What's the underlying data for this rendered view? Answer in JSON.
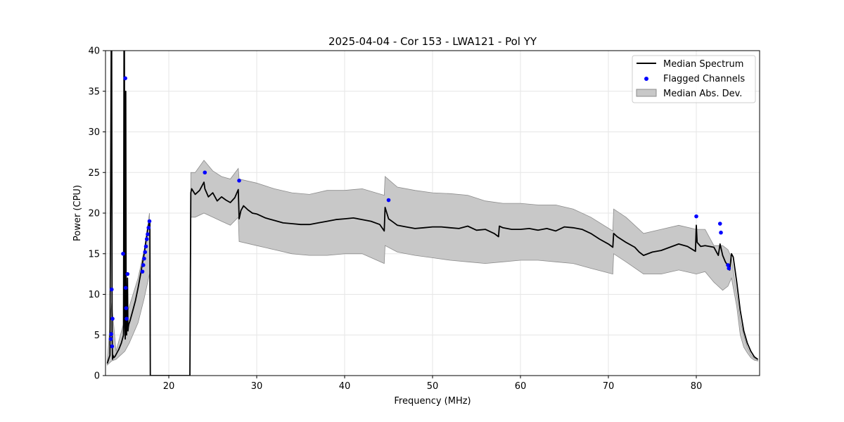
{
  "chart_data": {
    "type": "line",
    "title": "2025-04-04 - Cor 153 - LWA121 - Pol YY",
    "xlabel": "Frequency (MHz)",
    "ylabel": "Power (CPU)",
    "xlim": [
      12.8,
      87.2
    ],
    "ylim": [
      0,
      40
    ],
    "xticks": [
      20,
      30,
      40,
      50,
      60,
      70,
      80
    ],
    "yticks": [
      0,
      5,
      10,
      15,
      20,
      25,
      30,
      35,
      40
    ],
    "grid": true,
    "legend_position": "upper-right",
    "legend": [
      "Median Spectrum",
      "Flagged Channels",
      "Median Abs. Dev."
    ],
    "colors": {
      "median": "#000000",
      "flagged": "#0000ff",
      "band_fill": "#c8c8c8",
      "band_edge": "#8c8c8c"
    },
    "series": [
      {
        "name": "Median Spectrum",
        "x": [
          13.0,
          13.3,
          13.45,
          13.5,
          13.55,
          13.6,
          13.65,
          13.75,
          13.9,
          14.0,
          14.3,
          14.6,
          14.85,
          14.9,
          14.95,
          15.0,
          15.05,
          15.1,
          15.15,
          15.2,
          15.3,
          15.35,
          15.4,
          15.45,
          15.6,
          15.9,
          16.2,
          16.5,
          16.8,
          17.0,
          17.2,
          17.4,
          17.6,
          17.8,
          17.85,
          17.9,
          18.0,
          20.0,
          22.4,
          22.5,
          22.6,
          23.0,
          23.5,
          24.0,
          24.1,
          24.5,
          25.0,
          25.5,
          26.0,
          26.5,
          27.0,
          27.5,
          27.9,
          28.0,
          28.2,
          28.5,
          29.0,
          29.5,
          30.0,
          31.0,
          32.0,
          33.0,
          34.0,
          35.0,
          36.0,
          37.0,
          38.0,
          39.0,
          40.0,
          41.0,
          42.0,
          43.0,
          44.0,
          44.5,
          44.6,
          45.0,
          45.5,
          46.0,
          47.0,
          48.0,
          49.0,
          50.0,
          51.0,
          52.0,
          53.0,
          54.0,
          55.0,
          56.0,
          57.0,
          57.5,
          57.6,
          58.0,
          59.0,
          60.0,
          61.0,
          62.0,
          63.0,
          64.0,
          65.0,
          66.0,
          67.0,
          68.0,
          69.0,
          70.0,
          70.5,
          70.6,
          71.0,
          72.0,
          73.0,
          73.5,
          74.0,
          75.0,
          76.0,
          77.0,
          78.0,
          79.0,
          79.9,
          80.0,
          80.1,
          80.5,
          81.0,
          82.0,
          82.5,
          82.7,
          83.0,
          83.3,
          83.6,
          83.8,
          84.0,
          84.2,
          84.6,
          85.0,
          85.4,
          85.8,
          86.2,
          86.6,
          87.0
        ],
        "y": [
          1.5,
          2.5,
          40.0,
          40.0,
          5.0,
          2.0,
          2.5,
          2.2,
          2.4,
          2.6,
          3.2,
          4.0,
          5.0,
          40.0,
          40.0,
          6.0,
          4.5,
          35.0,
          6.0,
          5.0,
          12.0,
          5.5,
          6.0,
          6.3,
          6.8,
          8.0,
          9.2,
          10.8,
          12.5,
          13.8,
          15.0,
          16.5,
          18.0,
          19.0,
          19.0,
          0.0,
          0.0,
          0.0,
          0.0,
          22.5,
          23.0,
          22.3,
          22.8,
          23.8,
          23.0,
          22.0,
          22.5,
          21.5,
          22.0,
          21.6,
          21.3,
          21.9,
          22.9,
          19.3,
          20.3,
          20.9,
          20.4,
          20.0,
          19.9,
          19.4,
          19.1,
          18.8,
          18.7,
          18.6,
          18.6,
          18.8,
          19.0,
          19.2,
          19.3,
          19.4,
          19.2,
          19.0,
          18.6,
          17.8,
          20.7,
          19.3,
          18.9,
          18.5,
          18.3,
          18.1,
          18.2,
          18.3,
          18.3,
          18.2,
          18.1,
          18.4,
          17.9,
          18.0,
          17.5,
          17.1,
          18.4,
          18.2,
          18.0,
          18.0,
          18.1,
          17.9,
          18.1,
          17.8,
          18.3,
          18.2,
          18.0,
          17.5,
          16.8,
          16.2,
          15.8,
          17.5,
          17.1,
          16.4,
          15.8,
          15.2,
          14.8,
          15.2,
          15.4,
          15.8,
          16.2,
          15.9,
          15.3,
          18.5,
          16.4,
          15.9,
          16.0,
          15.8,
          14.8,
          16.2,
          14.8,
          14.0,
          13.5,
          13.0,
          15.0,
          14.6,
          11.5,
          8.0,
          5.5,
          4.0,
          3.0,
          2.3,
          2.0
        ]
      },
      {
        "name": "Flagged Channels",
        "x": [
          13.4,
          13.45,
          13.5,
          13.6,
          13.55,
          14.8,
          15.05,
          15.1,
          15.15,
          15.2,
          15.3,
          17.0,
          17.1,
          17.2,
          17.3,
          17.4,
          17.5,
          17.6,
          17.7,
          17.8,
          24.1,
          28.0,
          45.0,
          80.0,
          82.7,
          82.8,
          83.6,
          83.7
        ],
        "y": [
          4.5,
          5.1,
          10.6,
          7.0,
          3.6,
          15.0,
          36.6,
          10.8,
          8.3,
          7.0,
          12.5,
          12.8,
          13.6,
          14.4,
          15.2,
          15.9,
          16.8,
          17.4,
          18.2,
          19.0,
          25.0,
          24.0,
          21.6,
          19.6,
          18.7,
          17.6,
          13.6,
          13.2
        ]
      },
      {
        "name": "Median Abs. Dev.",
        "x": [
          13.0,
          13.5,
          14.0,
          15.0,
          15.5,
          16.5,
          17.2,
          17.8,
          17.9,
          22.4,
          22.5,
          23.0,
          24.0,
          25.0,
          26.0,
          27.0,
          27.9,
          28.0,
          30.0,
          32.0,
          34.0,
          36.0,
          38.0,
          40.0,
          42.0,
          44.5,
          44.6,
          46.0,
          48.0,
          50.0,
          52.0,
          54.0,
          56.0,
          58.0,
          60.0,
          62.0,
          64.0,
          66.0,
          68.0,
          70.5,
          70.6,
          72.0,
          74.0,
          76.0,
          78.0,
          80.0,
          81.0,
          82.0,
          83.0,
          83.6,
          84.0,
          84.6,
          85.0,
          85.4,
          85.8,
          86.2,
          86.6,
          87.0
        ],
        "upper": [
          1.8,
          9.0,
          3.0,
          7.0,
          8.5,
          12.0,
          15.5,
          20.0,
          0.0,
          0.0,
          25.0,
          25.0,
          26.5,
          25.2,
          24.5,
          24.2,
          25.5,
          24.2,
          23.7,
          23.0,
          22.5,
          22.3,
          22.8,
          22.8,
          23.0,
          22.2,
          24.5,
          23.2,
          22.8,
          22.5,
          22.4,
          22.2,
          21.5,
          21.2,
          21.2,
          21.0,
          21.0,
          20.5,
          19.5,
          17.8,
          20.5,
          19.5,
          17.5,
          18.0,
          18.5,
          18.0,
          18.0,
          16.0,
          16.0,
          15.5,
          14.5,
          10.0,
          6.8,
          5.0,
          3.5,
          2.6,
          2.1,
          2.0
        ],
        "lower": [
          1.3,
          1.8,
          2.0,
          3.0,
          4.0,
          6.5,
          9.5,
          12.5,
          0.0,
          0.0,
          19.5,
          19.5,
          20.0,
          19.5,
          19.0,
          18.5,
          19.5,
          16.5,
          16.0,
          15.5,
          15.0,
          14.8,
          14.8,
          15.0,
          15.0,
          13.8,
          16.0,
          15.2,
          14.8,
          14.5,
          14.2,
          14.0,
          13.8,
          14.0,
          14.2,
          14.2,
          14.0,
          13.8,
          13.2,
          12.5,
          15.0,
          14.0,
          12.5,
          12.5,
          13.0,
          12.5,
          12.8,
          11.5,
          10.5,
          11.0,
          12.0,
          8.5,
          5.0,
          3.5,
          2.8,
          2.2,
          1.9,
          1.8
        ]
      }
    ]
  }
}
